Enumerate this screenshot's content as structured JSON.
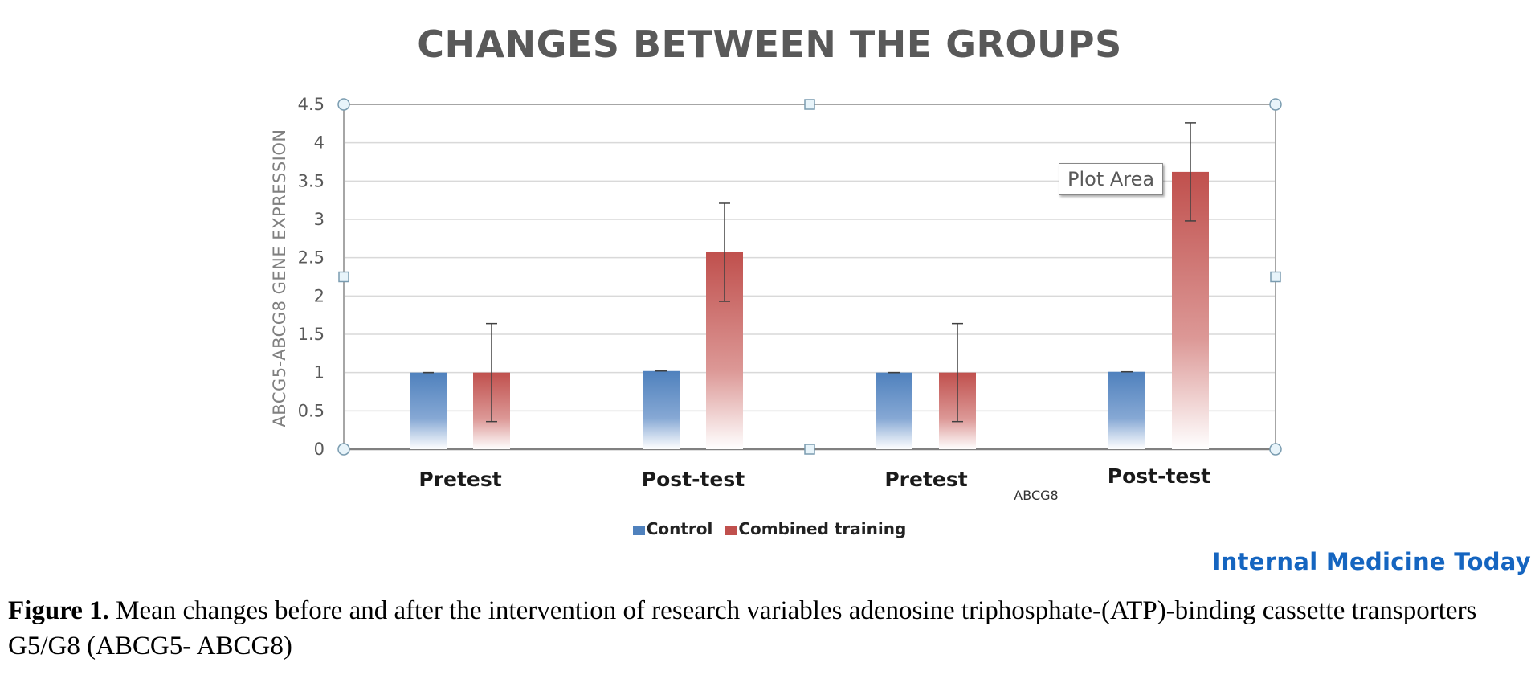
{
  "chart_data": {
    "type": "bar",
    "title": "CHANGES BETWEEN THE GROUPS",
    "ylabel": "ABCG5-ABCG8 GENE EXPRESSION",
    "xlabel_secondary": "ABCG8",
    "ylim": [
      0,
      4.5
    ],
    "yticks": [
      "0",
      "0.5",
      "1",
      "1.5",
      "2",
      "2.5",
      "3",
      "3.5",
      "4",
      "4.5"
    ],
    "categories": [
      "Pretest",
      "Post-test",
      "Pretest",
      "Post-test"
    ],
    "series": [
      {
        "name": "Control",
        "color": "#4f81bd",
        "values": [
          1.0,
          1.02,
          1.0,
          1.01
        ],
        "error": [
          0.0,
          0.0,
          0.0,
          0.0
        ]
      },
      {
        "name": "Combined training",
        "color": "#c0504d",
        "values": [
          1.0,
          2.57,
          1.0,
          3.62
        ],
        "error": [
          0.64,
          0.64,
          0.64,
          0.64
        ]
      }
    ],
    "grid": true,
    "legend_position": "bottom"
  },
  "tooltip": {
    "text": "Plot Area"
  },
  "brand": {
    "text": "Internal Medicine Today"
  },
  "caption": {
    "label": "Figure 1.",
    "text": " Mean changes before and after the intervention of research variables adenosine triphosphate-(ATP)-binding cassette transporters G5/G8 (ABCG5- ABCG8)"
  },
  "colors": {
    "title": "#595959",
    "brand": "#1565c0",
    "axis": "#808080",
    "grid": "#d9d9d9"
  }
}
